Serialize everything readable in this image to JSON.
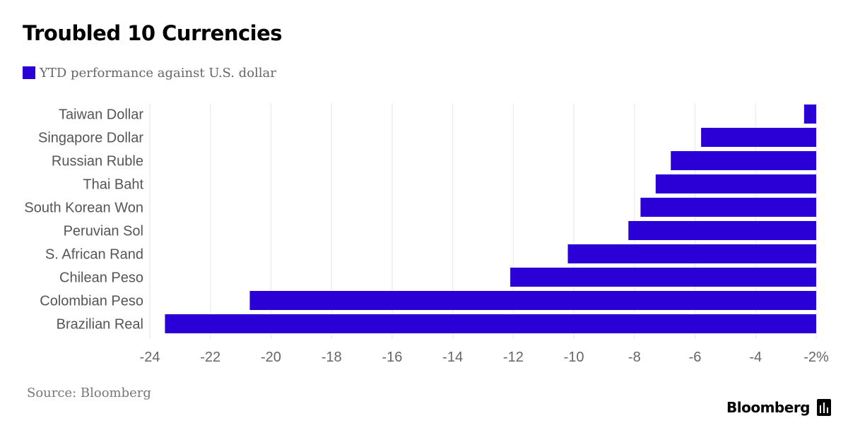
{
  "title": "Troubled 10 Currencies",
  "legend": {
    "label": "YTD performance against U.S. dollar"
  },
  "source": "Source: Bloomberg",
  "brand": {
    "name": "Bloomberg",
    "icon": "bloomberg-terminal-icon"
  },
  "colors": {
    "bar": "#2b00d6",
    "grid": "#e6e6e6"
  },
  "chart_data": {
    "type": "bar",
    "orientation": "horizontal",
    "categories": [
      "Taiwan Dollar",
      "Singapore Dollar",
      "Russian Ruble",
      "Thai Baht",
      "South Korean Won",
      "Peruvian Sol",
      "S. African Rand",
      "Chilean Peso",
      "Colombian Peso",
      "Brazilian Real"
    ],
    "series": [
      {
        "name": "YTD performance against U.S. dollar",
        "values": [
          -2.4,
          -5.8,
          -6.8,
          -7.3,
          -7.8,
          -8.2,
          -10.2,
          -12.1,
          -20.7,
          -23.5
        ]
      }
    ],
    "xlim": [
      -24,
      -2
    ],
    "baseline": -2,
    "ticks": [
      "-24",
      "-22",
      "-20",
      "-18",
      "-16",
      "-14",
      "-12",
      "-10",
      "-8",
      "-6",
      "-4",
      "-2%"
    ],
    "tick_values": [
      -24,
      -22,
      -20,
      -18,
      -16,
      -14,
      -12,
      -10,
      -8,
      -6,
      -4,
      -2
    ],
    "grid": true
  }
}
